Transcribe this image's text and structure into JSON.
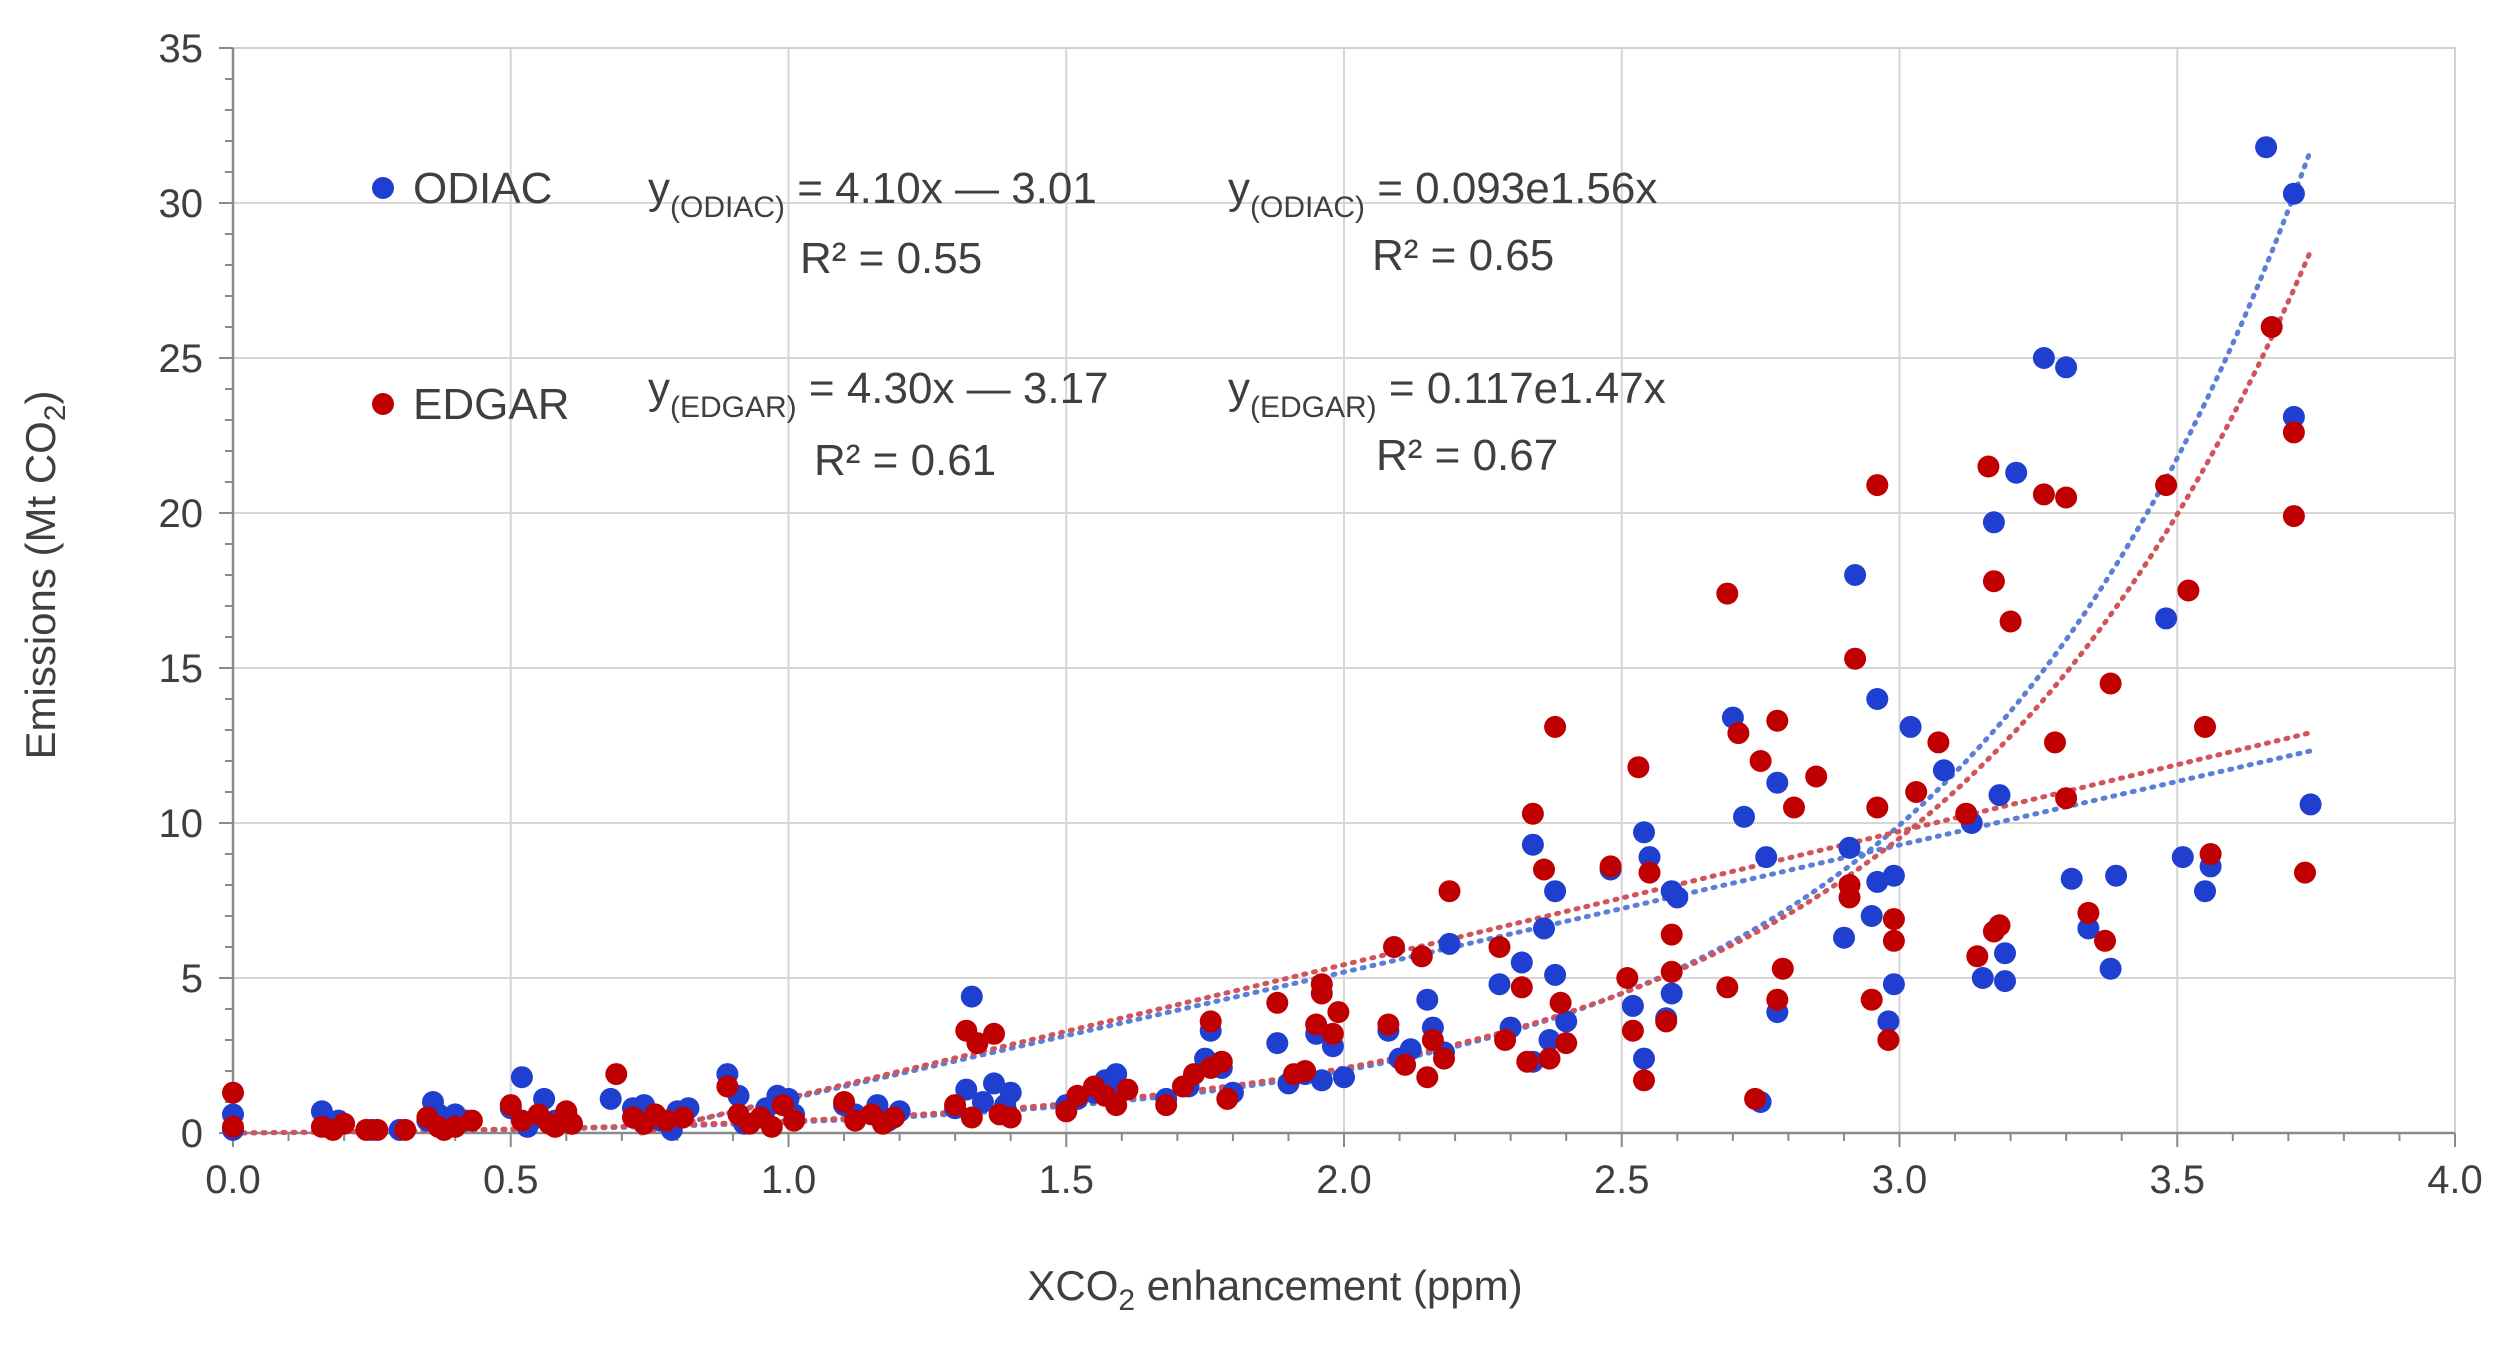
{
  "chart_data": {
    "type": "scatter",
    "xlabel_prefix": "XCO",
    "xlabel_sub": "2",
    "xlabel_suffix": " enhancement (ppm)",
    "ylabel_prefix": "Emissions (Mt CO",
    "ylabel_sub": "2",
    "ylabel_suffix": ")",
    "xlim": [
      0,
      4
    ],
    "ylim": [
      0,
      35
    ],
    "x_ticks": [
      "0.0",
      "0.5",
      "1.0",
      "1.5",
      "2.0",
      "2.5",
      "3.0",
      "3.5",
      "4.0"
    ],
    "y_ticks": [
      "0",
      "5",
      "10",
      "15",
      "20",
      "25",
      "30",
      "35"
    ],
    "grid": true,
    "legend_position": "top-left",
    "series": [
      {
        "name": "ODIAC",
        "color": "#1f3fd1",
        "linear_fit": {
          "label_y": "y",
          "label_sub": "(ODIAC)",
          "equation": " = 4.10x — 3.01",
          "r2": "R² = 0.55",
          "slope": 4.1,
          "intercept": -3.01
        },
        "exp_fit": {
          "label_y": "y",
          "label_sub": "(ODIAC)",
          "equation": " = 0.093e1.56x",
          "r2": "R² = 0.65",
          "a": 0.093,
          "b": 1.56
        },
        "points": [
          [
            0.0,
            0.6
          ],
          [
            0.0,
            0.1
          ],
          [
            0.16,
            0.7
          ],
          [
            0.18,
            0.2
          ],
          [
            0.19,
            0.4
          ],
          [
            0.25,
            0.1
          ],
          [
            0.3,
            0.1
          ],
          [
            0.35,
            0.4
          ],
          [
            0.36,
            1.0
          ],
          [
            0.37,
            0.6
          ],
          [
            0.38,
            0.3
          ],
          [
            0.4,
            0.6
          ],
          [
            0.42,
            0.4
          ],
          [
            0.5,
            0.8
          ],
          [
            0.52,
            1.8
          ],
          [
            0.53,
            0.2
          ],
          [
            0.55,
            0.5
          ],
          [
            0.56,
            1.1
          ],
          [
            0.58,
            0.4
          ],
          [
            0.6,
            0.6
          ],
          [
            0.61,
            0.3
          ],
          [
            0.68,
            1.1
          ],
          [
            0.72,
            0.8
          ],
          [
            0.74,
            0.9
          ],
          [
            0.77,
            0.4
          ],
          [
            0.79,
            0.1
          ],
          [
            0.8,
            0.7
          ],
          [
            0.82,
            0.8
          ],
          [
            0.89,
            1.9
          ],
          [
            0.91,
            1.2
          ],
          [
            0.92,
            0.3
          ],
          [
            0.96,
            0.8
          ],
          [
            0.98,
            1.2
          ],
          [
            1.0,
            1.1
          ],
          [
            1.01,
            0.6
          ],
          [
            1.1,
            0.9
          ],
          [
            1.12,
            0.6
          ],
          [
            1.16,
            0.9
          ],
          [
            1.18,
            0.4
          ],
          [
            1.2,
            0.7
          ],
          [
            1.3,
            0.8
          ],
          [
            1.32,
            1.4
          ],
          [
            1.33,
            4.4
          ],
          [
            1.35,
            1.0
          ],
          [
            1.37,
            1.6
          ],
          [
            1.39,
            0.9
          ],
          [
            1.4,
            1.3
          ],
          [
            1.5,
            0.9
          ],
          [
            1.52,
            1.1
          ],
          [
            1.55,
            1.3
          ],
          [
            1.57,
            1.7
          ],
          [
            1.59,
            1.9
          ],
          [
            1.6,
            1.4
          ],
          [
            1.68,
            1.1
          ],
          [
            1.72,
            1.5
          ],
          [
            1.75,
            2.4
          ],
          [
            1.76,
            3.3
          ],
          [
            1.78,
            2.1
          ],
          [
            1.8,
            1.3
          ],
          [
            1.88,
            2.9
          ],
          [
            1.9,
            1.6
          ],
          [
            1.93,
            1.9
          ],
          [
            1.95,
            3.2
          ],
          [
            1.96,
            1.7
          ],
          [
            1.98,
            2.8
          ],
          [
            2.0,
            1.8
          ],
          [
            2.08,
            3.3
          ],
          [
            2.1,
            2.4
          ],
          [
            2.12,
            2.7
          ],
          [
            2.15,
            4.3
          ],
          [
            2.16,
            3.4
          ],
          [
            2.18,
            2.6
          ],
          [
            2.19,
            6.1
          ],
          [
            2.28,
            4.8
          ],
          [
            2.3,
            3.4
          ],
          [
            2.32,
            5.5
          ],
          [
            2.34,
            2.3
          ],
          [
            2.34,
            9.3
          ],
          [
            2.36,
            6.6
          ],
          [
            2.37,
            3.0
          ],
          [
            2.38,
            7.8
          ],
          [
            2.38,
            5.1
          ],
          [
            2.4,
            3.6
          ],
          [
            2.48,
            8.5
          ],
          [
            2.52,
            4.1
          ],
          [
            2.54,
            9.7
          ],
          [
            2.54,
            2.4
          ],
          [
            2.55,
            8.9
          ],
          [
            2.58,
            3.7
          ],
          [
            2.59,
            7.8
          ],
          [
            2.59,
            4.5
          ],
          [
            2.6,
            7.6
          ],
          [
            2.7,
            13.4
          ],
          [
            2.72,
            10.2
          ],
          [
            2.75,
            1.0
          ],
          [
            2.76,
            8.9
          ],
          [
            2.78,
            11.3
          ],
          [
            2.78,
            3.9
          ],
          [
            2.9,
            6.3
          ],
          [
            2.91,
            9.2
          ],
          [
            2.92,
            18.0
          ],
          [
            2.95,
            7.0
          ],
          [
            2.96,
            8.1
          ],
          [
            2.96,
            14.0
          ],
          [
            2.98,
            3.6
          ],
          [
            2.99,
            8.3
          ],
          [
            2.99,
            4.8
          ],
          [
            3.02,
            13.1
          ],
          [
            3.08,
            11.7
          ],
          [
            3.13,
            10.0
          ],
          [
            3.15,
            5.0
          ],
          [
            3.17,
            19.7
          ],
          [
            3.18,
            10.9
          ],
          [
            3.19,
            5.8
          ],
          [
            3.19,
            4.9
          ],
          [
            3.21,
            21.3
          ],
          [
            3.26,
            25.0
          ],
          [
            3.3,
            24.7
          ],
          [
            3.31,
            8.2
          ],
          [
            3.34,
            6.6
          ],
          [
            3.38,
            5.3
          ],
          [
            3.39,
            8.3
          ],
          [
            3.48,
            16.6
          ],
          [
            3.51,
            8.9
          ],
          [
            3.55,
            7.8
          ],
          [
            3.56,
            8.6
          ],
          [
            3.66,
            31.8
          ],
          [
            3.71,
            30.3
          ],
          [
            3.71,
            23.1
          ],
          [
            3.74,
            10.6
          ]
        ]
      },
      {
        "name": "EDGAR",
        "color": "#c00000",
        "linear_fit": {
          "label_y": "y",
          "label_sub": "(EDGAR)",
          "equation": " = 4.30x — 3.17",
          "r2": "R² = 0.61",
          "slope": 4.3,
          "intercept": -3.17
        },
        "exp_fit": {
          "label_y": "y",
          "label_sub": "(EDGAR)",
          "equation": " = 0.117e1.47x",
          "r2": "R² = 0.67",
          "a": 0.117,
          "b": 1.47
        },
        "points": [
          [
            0.0,
            1.3
          ],
          [
            0.0,
            0.2
          ],
          [
            0.16,
            0.2
          ],
          [
            0.18,
            0.1
          ],
          [
            0.2,
            0.3
          ],
          [
            0.24,
            0.1
          ],
          [
            0.26,
            0.1
          ],
          [
            0.31,
            0.1
          ],
          [
            0.35,
            0.5
          ],
          [
            0.37,
            0.2
          ],
          [
            0.38,
            0.1
          ],
          [
            0.4,
            0.2
          ],
          [
            0.43,
            0.4
          ],
          [
            0.5,
            0.9
          ],
          [
            0.52,
            0.4
          ],
          [
            0.55,
            0.6
          ],
          [
            0.57,
            0.3
          ],
          [
            0.58,
            0.2
          ],
          [
            0.6,
            0.7
          ],
          [
            0.61,
            0.3
          ],
          [
            0.69,
            1.9
          ],
          [
            0.72,
            0.5
          ],
          [
            0.74,
            0.3
          ],
          [
            0.76,
            0.6
          ],
          [
            0.78,
            0.4
          ],
          [
            0.81,
            0.5
          ],
          [
            0.89,
            1.5
          ],
          [
            0.91,
            0.6
          ],
          [
            0.93,
            0.3
          ],
          [
            0.95,
            0.5
          ],
          [
            0.97,
            0.2
          ],
          [
            0.99,
            0.9
          ],
          [
            1.01,
            0.4
          ],
          [
            1.1,
            1.0
          ],
          [
            1.12,
            0.4
          ],
          [
            1.15,
            0.6
          ],
          [
            1.17,
            0.3
          ],
          [
            1.19,
            0.5
          ],
          [
            1.3,
            0.9
          ],
          [
            1.32,
            3.3
          ],
          [
            1.33,
            0.5
          ],
          [
            1.34,
            2.9
          ],
          [
            1.37,
            3.2
          ],
          [
            1.38,
            0.6
          ],
          [
            1.4,
            0.5
          ],
          [
            1.5,
            0.7
          ],
          [
            1.52,
            1.2
          ],
          [
            1.55,
            1.5
          ],
          [
            1.57,
            1.2
          ],
          [
            1.59,
            0.9
          ],
          [
            1.61,
            1.4
          ],
          [
            1.68,
            0.9
          ],
          [
            1.71,
            1.5
          ],
          [
            1.73,
            1.9
          ],
          [
            1.76,
            2.1
          ],
          [
            1.76,
            3.6
          ],
          [
            1.78,
            2.3
          ],
          [
            1.79,
            1.1
          ],
          [
            1.88,
            4.2
          ],
          [
            1.91,
            1.9
          ],
          [
            1.93,
            2.0
          ],
          [
            1.95,
            3.5
          ],
          [
            1.96,
            4.8
          ],
          [
            1.96,
            4.5
          ],
          [
            1.98,
            3.2
          ],
          [
            1.99,
            3.9
          ],
          [
            2.08,
            3.5
          ],
          [
            2.09,
            6.0
          ],
          [
            2.11,
            2.2
          ],
          [
            2.14,
            5.7
          ],
          [
            2.15,
            1.8
          ],
          [
            2.16,
            3.0
          ],
          [
            2.18,
            2.4
          ],
          [
            2.19,
            7.8
          ],
          [
            2.28,
            6.0
          ],
          [
            2.29,
            3.0
          ],
          [
            2.32,
            4.7
          ],
          [
            2.33,
            2.3
          ],
          [
            2.34,
            10.3
          ],
          [
            2.36,
            8.5
          ],
          [
            2.37,
            2.4
          ],
          [
            2.38,
            13.1
          ],
          [
            2.39,
            4.2
          ],
          [
            2.4,
            2.9
          ],
          [
            2.48,
            8.6
          ],
          [
            2.51,
            5.0
          ],
          [
            2.52,
            3.3
          ],
          [
            2.53,
            11.8
          ],
          [
            2.54,
            1.7
          ],
          [
            2.55,
            8.4
          ],
          [
            2.58,
            3.6
          ],
          [
            2.59,
            6.4
          ],
          [
            2.59,
            5.2
          ],
          [
            2.69,
            17.4
          ],
          [
            2.69,
            4.7
          ],
          [
            2.71,
            12.9
          ],
          [
            2.74,
            1.1
          ],
          [
            2.75,
            12.0
          ],
          [
            2.78,
            13.3
          ],
          [
            2.78,
            4.3
          ],
          [
            2.79,
            5.3
          ],
          [
            2.81,
            10.5
          ],
          [
            2.85,
            11.5
          ],
          [
            2.91,
            8.0
          ],
          [
            2.91,
            7.6
          ],
          [
            2.92,
            15.3
          ],
          [
            2.95,
            4.3
          ],
          [
            2.96,
            10.5
          ],
          [
            2.96,
            20.9
          ],
          [
            2.98,
            3.0
          ],
          [
            2.99,
            6.9
          ],
          [
            2.99,
            6.2
          ],
          [
            3.03,
            11.0
          ],
          [
            3.07,
            12.6
          ],
          [
            3.12,
            10.3
          ],
          [
            3.14,
            5.7
          ],
          [
            3.16,
            21.5
          ],
          [
            3.17,
            17.8
          ],
          [
            3.17,
            6.5
          ],
          [
            3.18,
            6.7
          ],
          [
            3.2,
            16.5
          ],
          [
            3.26,
            20.6
          ],
          [
            3.28,
            12.6
          ],
          [
            3.3,
            20.5
          ],
          [
            3.3,
            10.8
          ],
          [
            3.34,
            7.1
          ],
          [
            3.37,
            6.2
          ],
          [
            3.38,
            14.5
          ],
          [
            3.48,
            20.9
          ],
          [
            3.52,
            17.5
          ],
          [
            3.55,
            13.1
          ],
          [
            3.56,
            9.0
          ],
          [
            3.67,
            26.0
          ],
          [
            3.71,
            22.6
          ],
          [
            3.71,
            19.9
          ],
          [
            3.73,
            8.4
          ]
        ]
      }
    ]
  }
}
